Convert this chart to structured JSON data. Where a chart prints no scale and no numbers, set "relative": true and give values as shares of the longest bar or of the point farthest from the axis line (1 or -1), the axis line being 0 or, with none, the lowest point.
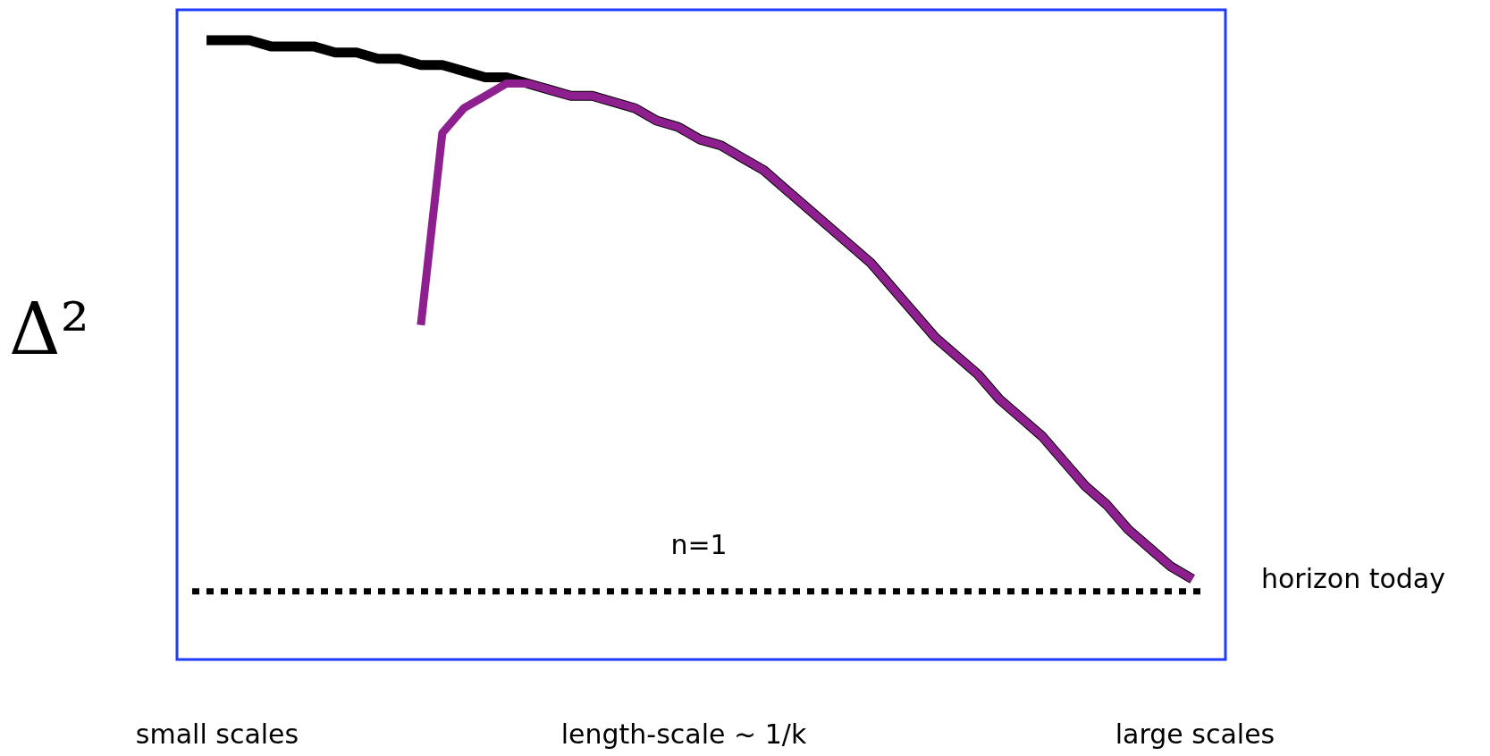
{
  "chart_data": {
    "type": "line",
    "relative": true,
    "ylabel": "Δ²",
    "xlabel": "length-scale ~ 1/k",
    "legend": false,
    "marker": "none",
    "line_style": "solid",
    "categories": [
      null,
      null,
      null,
      null,
      null,
      null,
      null,
      null,
      null,
      null,
      null,
      null,
      null,
      null,
      null,
      null,
      null,
      null,
      null,
      null,
      null,
      null,
      null,
      null,
      null,
      null,
      null,
      null,
      null,
      null,
      null,
      null,
      null,
      null,
      null,
      null,
      null,
      null,
      null,
      null,
      null,
      null,
      null,
      null,
      null,
      null,
      null
    ],
    "series": [
      {
        "color": "#000000",
        "values": [
          1,
          1,
          1,
          0.99,
          0.99,
          0.99,
          0.98,
          0.98,
          0.97,
          0.97,
          0.96,
          0.96,
          0.95,
          0.94,
          0.94,
          0.93,
          0.92,
          0.91,
          0.91,
          0.9,
          0.89,
          0.87,
          0.86,
          0.84,
          0.83,
          0.81,
          0.79,
          0.76,
          0.73,
          0.7,
          0.67,
          0.64,
          0.6,
          0.56,
          0.52,
          0.49,
          0.46,
          0.42,
          0.39,
          0.36,
          0.32,
          0.28,
          0.25,
          0.21,
          0.18,
          0.15,
          0.13
        ]
      },
      {
        "color": "#8e1f8f",
        "values": [
          null,
          null,
          null,
          null,
          null,
          null,
          null,
          null,
          null,
          null,
          0.54,
          0.85,
          0.89,
          0.91,
          0.93,
          0.93,
          0.92,
          0.91,
          0.91,
          0.9,
          0.89,
          0.87,
          0.86,
          0.84,
          0.83,
          0.81,
          0.79,
          0.76,
          0.73,
          0.7,
          0.67,
          0.64,
          0.6,
          0.56,
          0.52,
          0.49,
          0.46,
          0.42,
          0.39,
          0.36,
          0.32,
          0.28,
          0.25,
          0.21,
          0.18,
          0.15,
          0.13
        ]
      }
    ],
    "ref_lines": [
      {
        "axis": "y",
        "value": 0.11,
        "label": "horizon today",
        "color": "#000000",
        "line_style": "dotted"
      }
    ],
    "annotations": [
      "n=1",
      "small scales",
      "large scales"
    ]
  }
}
